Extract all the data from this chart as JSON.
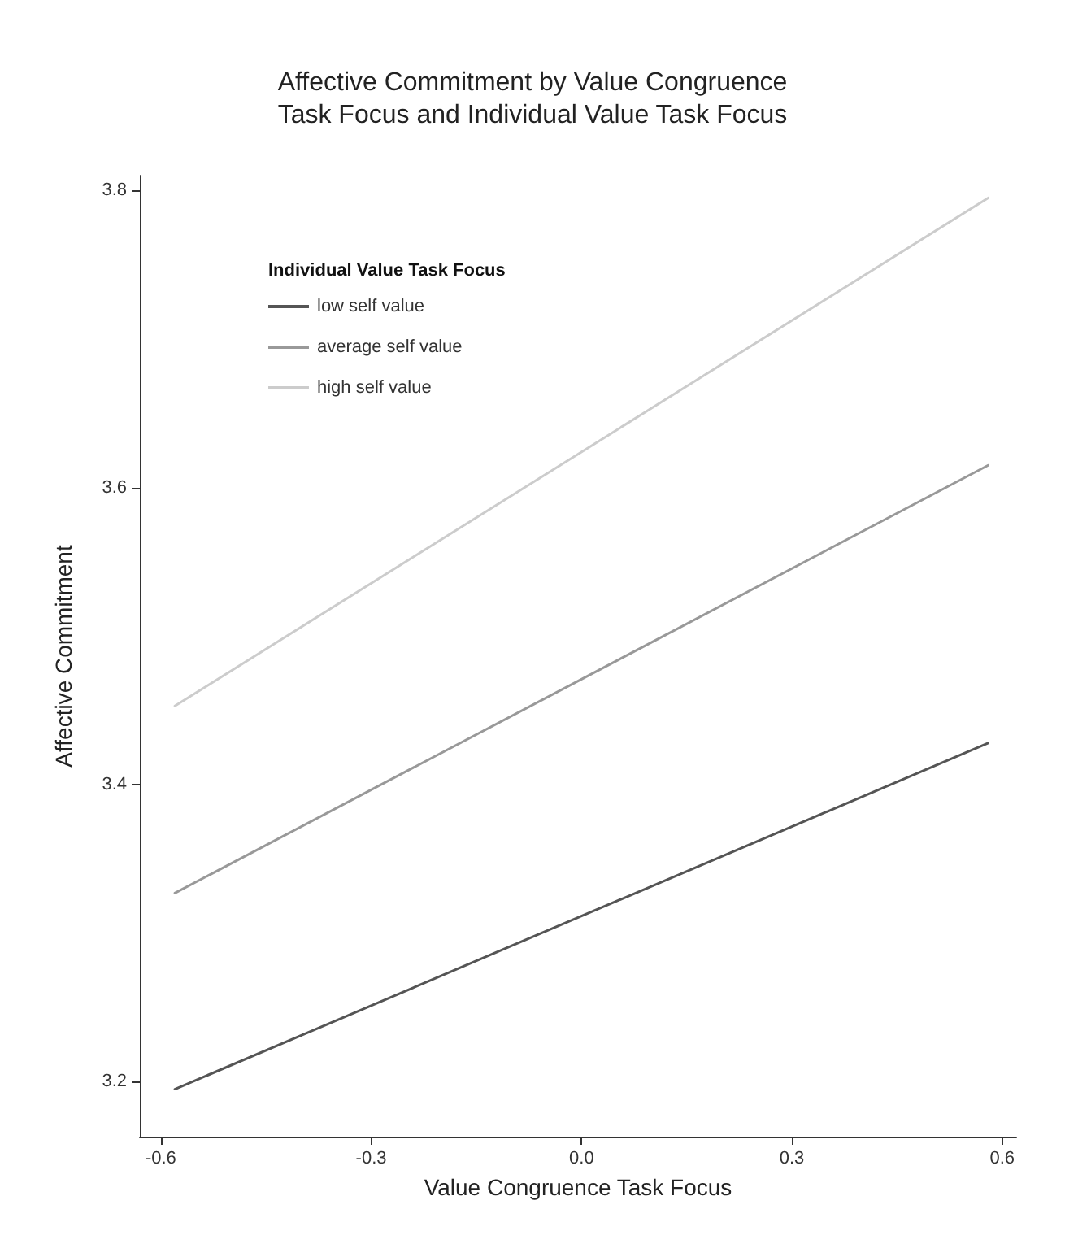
{
  "chart_data": {
    "type": "line",
    "title": "Affective Commitment by Value Congruence\nTask Focus and Individual Value Task Focus",
    "xlabel": "Value Congruence Task Focus",
    "ylabel": "Affective Commitment",
    "legend_title": "Individual Value Task Focus",
    "legend": "top left",
    "grid": false,
    "marker": "none",
    "line_style": "solid",
    "x": [
      -0.58,
      0.58
    ],
    "series": [
      {
        "name": "low self value",
        "color": "#555555",
        "values": [
          3.195,
          3.428
        ]
      },
      {
        "name": "average self value",
        "color": "#999999",
        "values": [
          3.327,
          3.615
        ]
      },
      {
        "name": "high self value",
        "color": "#cccccc",
        "values": [
          3.453,
          3.795
        ]
      }
    ],
    "xlim": [
      -0.63,
      0.62
    ],
    "xticks": [
      {
        "value": -0.6,
        "label": "-0.6"
      },
      {
        "value": -0.3,
        "label": "-0.3"
      },
      {
        "value": 0,
        "label": "0.0"
      },
      {
        "value": 0.3,
        "label": "0.3"
      },
      {
        "value": 0.6,
        "label": "0.6"
      }
    ],
    "ylim": [
      3.163,
      3.81
    ],
    "yticks": [
      {
        "value": 3.2,
        "label": "3.2"
      },
      {
        "value": 3.4,
        "label": "3.4"
      },
      {
        "value": 3.6,
        "label": "3.6"
      },
      {
        "value": 3.8,
        "label": "3.8"
      }
    ]
  }
}
